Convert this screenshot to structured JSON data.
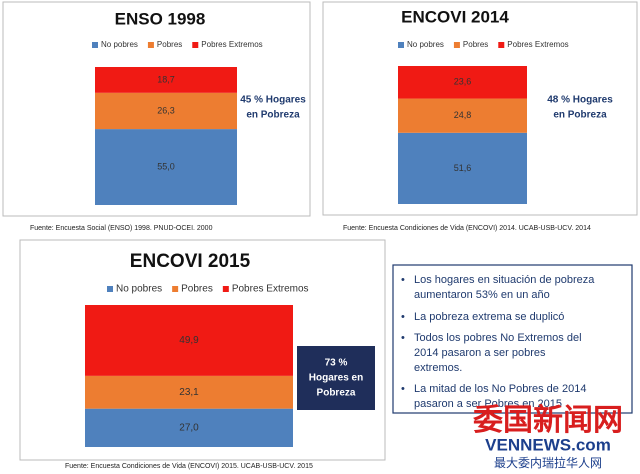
{
  "chart_data": [
    {
      "type": "bar",
      "title": "ENSO 1998",
      "ylim": [
        0,
        100
      ],
      "series": [
        {
          "name": "No pobres",
          "color": "#4f81bd",
          "values": [
            55.0
          ],
          "value_labels": [
            "55,0"
          ]
        },
        {
          "name": "Pobres",
          "color": "#ed7d31",
          "values": [
            26.3
          ],
          "value_labels": [
            "26,3"
          ]
        },
        {
          "name": "Pobres Extremos",
          "color": "#f01a14",
          "values": [
            18.7
          ],
          "value_labels": [
            "18,7"
          ]
        }
      ],
      "annotation": [
        "45 % Hogares",
        "en Pobreza"
      ],
      "source": "Fuente: Encuesta Social (ENSO) 1998. PNUD-OCEI. 2000"
    },
    {
      "type": "bar",
      "title": "ENCOVI 2014",
      "ylim": [
        0,
        100
      ],
      "series": [
        {
          "name": "No pobres",
          "color": "#4f81bd",
          "values": [
            51.6
          ],
          "value_labels": [
            "51,6"
          ]
        },
        {
          "name": "Pobres",
          "color": "#ed7d31",
          "values": [
            24.8
          ],
          "value_labels": [
            "24,8"
          ]
        },
        {
          "name": "Pobres Extremos",
          "color": "#f01a14",
          "values": [
            23.6
          ],
          "value_labels": [
            "23,6"
          ]
        }
      ],
      "annotation": [
        "48 % Hogares",
        "en Pobreza"
      ],
      "source": "Fuente: Encuesta Condiciones de Vida (ENCOVI) 2014. UCAB-USB-UCV. 2014"
    },
    {
      "type": "bar",
      "title": "ENCOVI 2015",
      "ylim": [
        0,
        100
      ],
      "series": [
        {
          "name": "No pobres",
          "color": "#4f81bd",
          "values": [
            27.0
          ],
          "value_labels": [
            "27,0"
          ]
        },
        {
          "name": "Pobres",
          "color": "#ed7d31",
          "values": [
            23.1
          ],
          "value_labels": [
            "23,1"
          ]
        },
        {
          "name": "Pobres Extremos",
          "color": "#f01a14",
          "values": [
            49.9
          ],
          "value_labels": [
            "49,9"
          ]
        }
      ],
      "annotation": [
        "73 %",
        "Hogares en",
        "Pobreza"
      ],
      "source": "Fuente: Encuesta Condiciones de Vida (ENCOVI) 2015. UCAB-USB-UCV. 2015"
    }
  ],
  "notes": [
    [
      "Los hogares en situación de pobreza",
      "aumentaron 53% en un año"
    ],
    [
      "La pobreza extrema se duplicó"
    ],
    [
      "Todos los pobres No Extremos del",
      "2014 pasaron a ser pobres",
      "extremos."
    ],
    [
      "La mitad de los No Pobres de 2014",
      "pasaron a ser Pobres en 2015"
    ]
  ],
  "watermark": {
    "name": "委国新闻网",
    "site": "VENNEWS.com",
    "tagline": "最大委内瑞拉华人网"
  }
}
